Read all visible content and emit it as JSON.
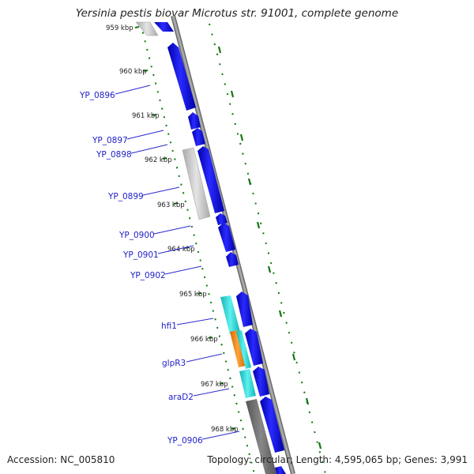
{
  "title": "Yersinia pestis biovar Microtus str. 91001, complete genome",
  "footer": {
    "accession": "Accession: NC_005810",
    "topology": "Topology: circular; Length: 4,595,065 bp; Genes: 3,991"
  },
  "kbp_labels": [
    "959 kbp",
    "960 kbp",
    "961 kbp",
    "962 kbp",
    "963 kbp",
    "964 kbp",
    "965 kbp",
    "966 kbp",
    "967 kbp",
    "968 kbp"
  ],
  "gene_labels": [
    "YP_0896",
    "YP_0897",
    "YP_0898",
    "YP_0899",
    "YP_0900",
    "YP_0901",
    "YP_0902",
    "hfi1",
    "glpR3",
    "araD2",
    "YP_0906"
  ],
  "colors": {
    "forward_gene": "#0000ff",
    "gray_feature": "#c8c8c8",
    "dark_feature": "#6e6e6e",
    "cyan_feature": "#1ed2d2",
    "orange_feature": "#ff8c00",
    "backbone": "#8c8c8c",
    "tick_green": "#117711",
    "label_blue": "#1e1ec8"
  }
}
